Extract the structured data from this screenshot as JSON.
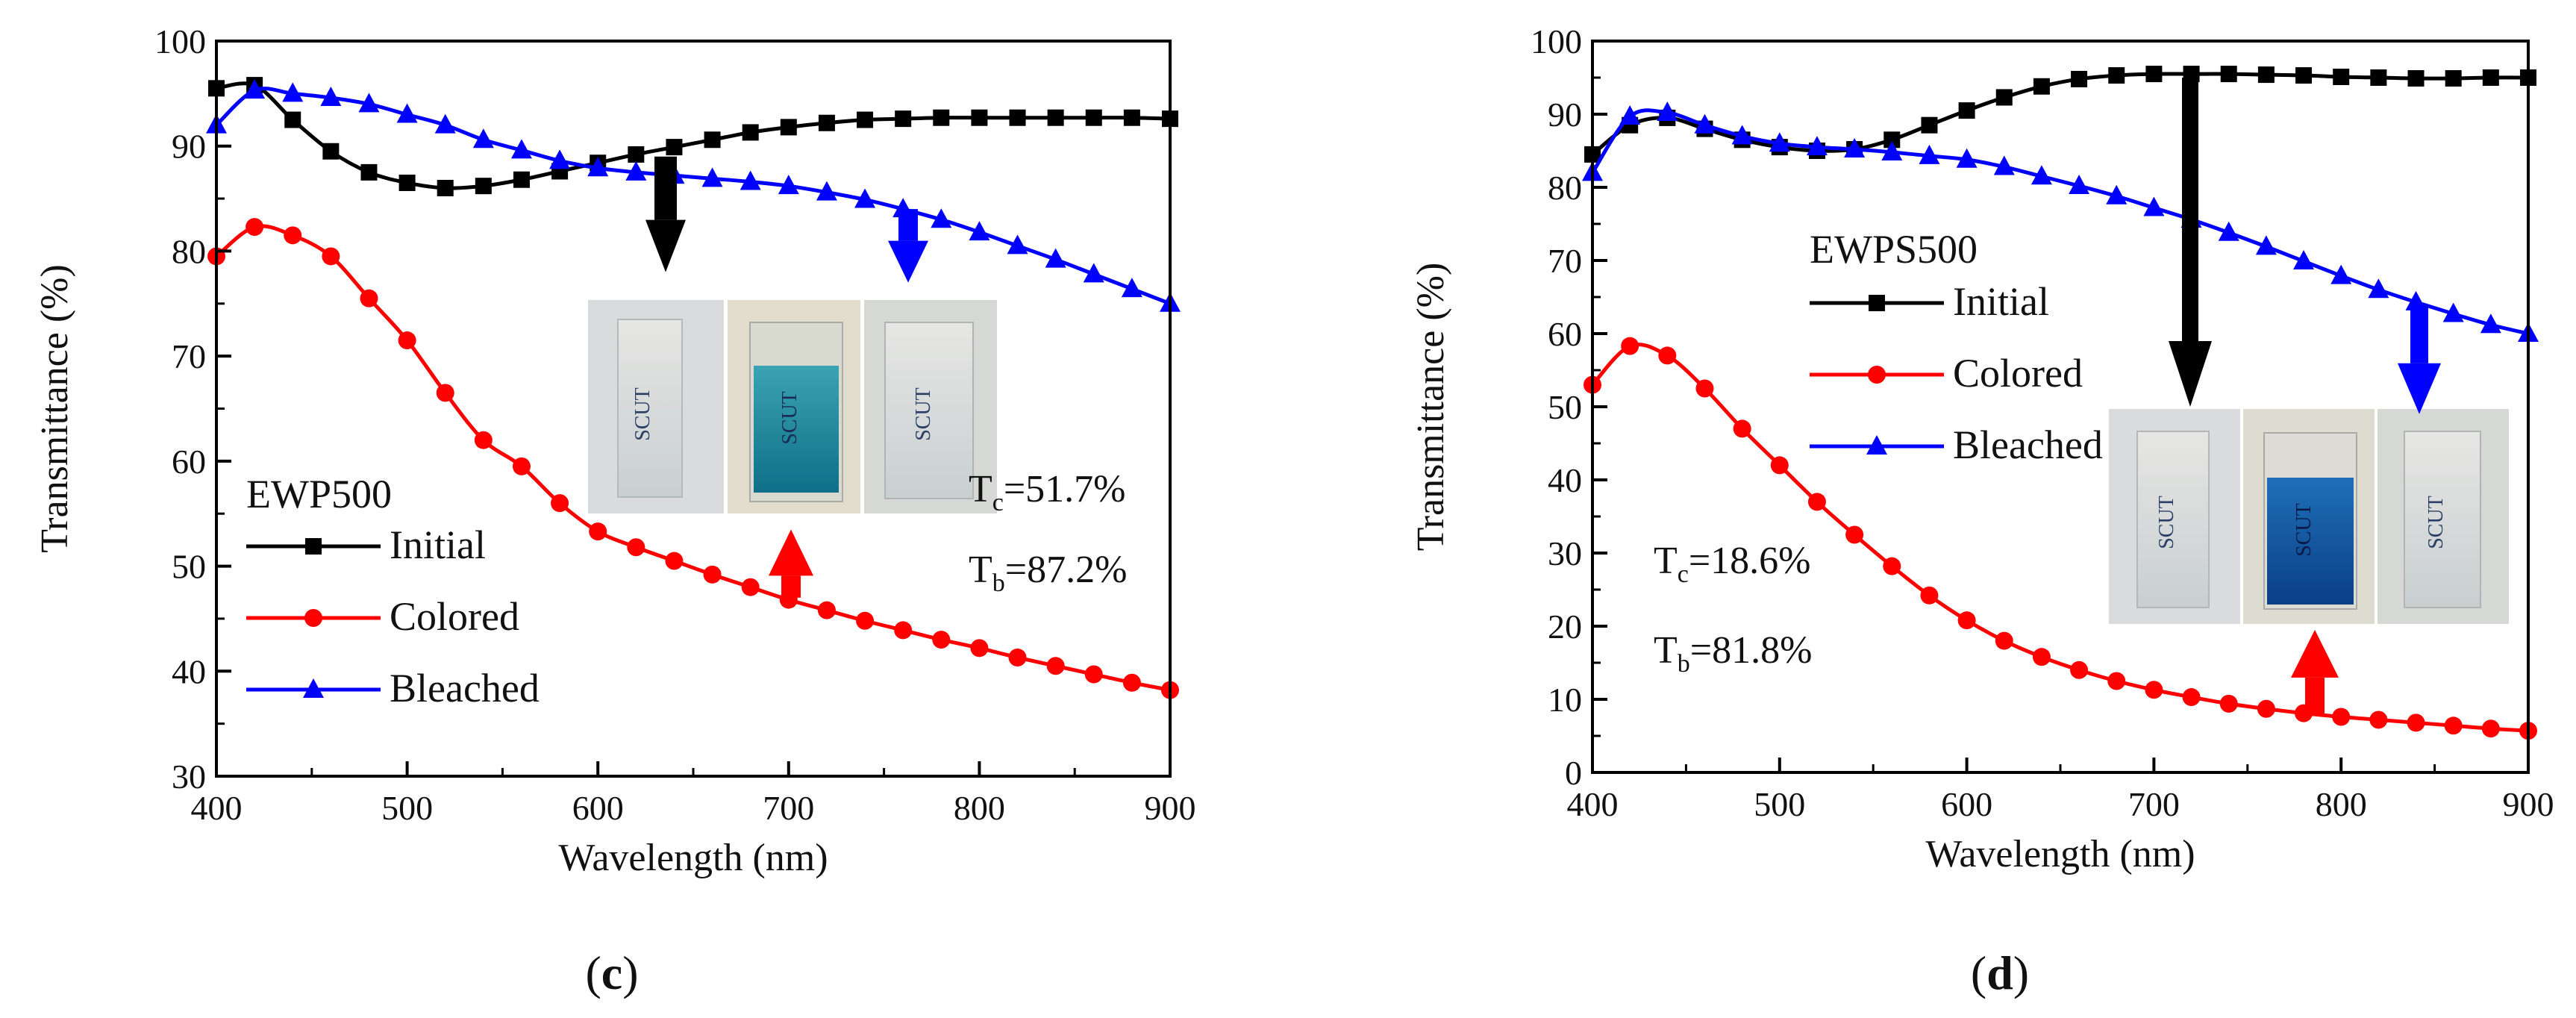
{
  "chart_data": [
    {
      "type": "line",
      "panel_label": "c",
      "xlabel": "Wavelength (nm)",
      "ylabel": "Transmittance (%)",
      "xlim": [
        400,
        900
      ],
      "ylim": [
        30,
        100
      ],
      "xticks": [
        400,
        500,
        600,
        700,
        800,
        900
      ],
      "yticks": [
        30,
        40,
        50,
        60,
        70,
        80,
        90,
        100
      ],
      "legend_title": "EWP500",
      "legend_placement": "lower-left",
      "annotations": {
        "tc_label": "T",
        "tc_sub": "c",
        "tc_value": "=51.7%",
        "tb_label": "T",
        "tb_sub": "b",
        "tb_value": "=87.2%"
      },
      "insert_sample_text": "SCUT",
      "series": [
        {
          "name": "Initial",
          "color": "#000000",
          "marker": "square",
          "x": [
            400,
            420,
            440,
            460,
            480,
            500,
            520,
            540,
            560,
            580,
            600,
            620,
            640,
            660,
            680,
            700,
            720,
            740,
            760,
            780,
            800,
            820,
            840,
            860,
            880,
            900
          ],
          "y": [
            95.5,
            95.8,
            92.5,
            89.5,
            87.5,
            86.5,
            86.0,
            86.2,
            86.8,
            87.6,
            88.4,
            89.2,
            89.9,
            90.6,
            91.3,
            91.8,
            92.2,
            92.5,
            92.6,
            92.7,
            92.7,
            92.7,
            92.7,
            92.7,
            92.7,
            92.6
          ]
        },
        {
          "name": "Colored",
          "color": "#ff0000",
          "marker": "circle",
          "x": [
            400,
            420,
            440,
            460,
            480,
            500,
            520,
            540,
            560,
            580,
            600,
            620,
            640,
            660,
            680,
            700,
            720,
            740,
            760,
            780,
            800,
            820,
            840,
            860,
            880,
            900
          ],
          "y": [
            79.5,
            82.3,
            81.5,
            79.5,
            75.5,
            71.5,
            66.5,
            62.0,
            59.5,
            56.0,
            53.3,
            51.8,
            50.5,
            49.2,
            48.0,
            46.8,
            45.8,
            44.8,
            43.9,
            43.0,
            42.2,
            41.3,
            40.5,
            39.7,
            38.9,
            38.2
          ]
        },
        {
          "name": "Bleached",
          "color": "#0000ff",
          "marker": "triangle",
          "x": [
            400,
            420,
            440,
            460,
            480,
            500,
            520,
            540,
            560,
            580,
            600,
            620,
            640,
            660,
            680,
            700,
            720,
            740,
            760,
            780,
            800,
            820,
            840,
            860,
            880,
            900
          ],
          "y": [
            92.0,
            95.3,
            95.0,
            94.6,
            94.0,
            93.0,
            92.0,
            90.6,
            89.6,
            88.6,
            87.9,
            87.5,
            87.2,
            86.9,
            86.6,
            86.2,
            85.6,
            84.9,
            84.0,
            83.0,
            81.8,
            80.5,
            79.2,
            77.8,
            76.4,
            75.0
          ]
        }
      ]
    },
    {
      "type": "line",
      "panel_label": "d",
      "xlabel": "Wavelength (nm)",
      "ylabel": "Transmittance (%)",
      "xlim": [
        400,
        900
      ],
      "ylim": [
        0,
        100
      ],
      "xticks": [
        400,
        500,
        600,
        700,
        800,
        900
      ],
      "yticks": [
        0,
        10,
        20,
        30,
        40,
        50,
        60,
        70,
        80,
        90,
        100
      ],
      "legend_title": "EWPS500",
      "legend_placement": "center-left",
      "annotations": {
        "tc_label": "T",
        "tc_sub": "c",
        "tc_value": "=18.6%",
        "tb_label": "T",
        "tb_sub": "b",
        "tb_value": "=81.8%"
      },
      "insert_sample_text": "SCUT",
      "series": [
        {
          "name": "Initial",
          "color": "#000000",
          "marker": "square",
          "x": [
            400,
            420,
            440,
            460,
            480,
            500,
            520,
            540,
            560,
            580,
            600,
            620,
            640,
            660,
            680,
            700,
            720,
            740,
            760,
            780,
            800,
            820,
            840,
            860,
            880,
            900
          ],
          "y": [
            84.5,
            88.5,
            89.5,
            88.0,
            86.5,
            85.5,
            85.0,
            85.2,
            86.5,
            88.5,
            90.5,
            92.3,
            93.8,
            94.8,
            95.3,
            95.5,
            95.5,
            95.5,
            95.4,
            95.3,
            95.1,
            95.0,
            94.9,
            94.9,
            95.0,
            95.0
          ]
        },
        {
          "name": "Colored",
          "color": "#ff0000",
          "marker": "circle",
          "x": [
            400,
            420,
            440,
            460,
            480,
            500,
            520,
            540,
            560,
            580,
            600,
            620,
            640,
            660,
            680,
            700,
            720,
            740,
            760,
            780,
            800,
            820,
            840,
            860,
            880,
            900
          ],
          "y": [
            53.0,
            58.3,
            57.0,
            52.5,
            47.0,
            42.0,
            37.0,
            32.5,
            28.2,
            24.2,
            20.8,
            18.0,
            15.8,
            14.0,
            12.5,
            11.3,
            10.3,
            9.4,
            8.7,
            8.1,
            7.6,
            7.2,
            6.8,
            6.4,
            6.0,
            5.7
          ]
        },
        {
          "name": "Bleached",
          "color": "#0000ff",
          "marker": "triangle",
          "x": [
            400,
            420,
            440,
            460,
            480,
            500,
            520,
            540,
            560,
            580,
            600,
            620,
            640,
            660,
            680,
            700,
            720,
            740,
            760,
            780,
            800,
            820,
            840,
            860,
            880,
            900
          ],
          "y": [
            82.0,
            89.7,
            90.2,
            88.5,
            87.0,
            86.0,
            85.5,
            85.2,
            84.8,
            84.3,
            83.8,
            82.8,
            81.5,
            80.2,
            78.8,
            77.2,
            75.6,
            73.8,
            71.9,
            69.9,
            67.9,
            66.0,
            64.3,
            62.7,
            61.2,
            60.0
          ]
        }
      ]
    }
  ]
}
